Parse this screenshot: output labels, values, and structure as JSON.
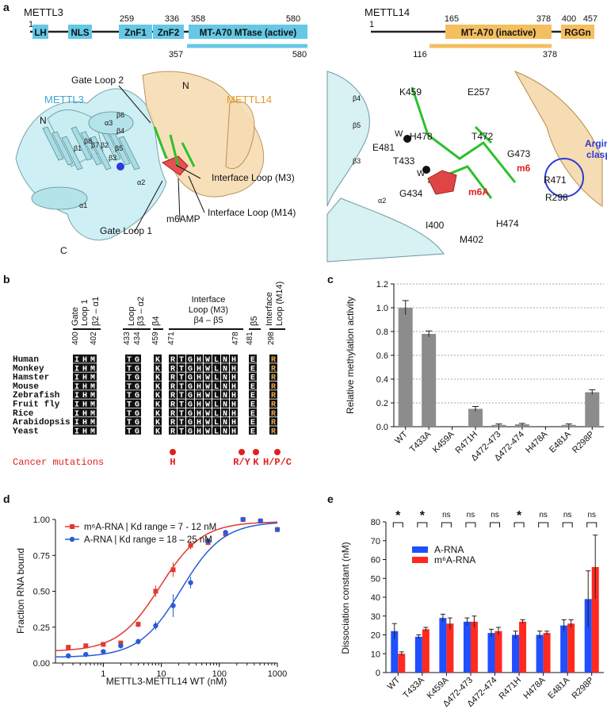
{
  "panel_labels": {
    "a": "a",
    "b": "b",
    "c": "c",
    "d": "d",
    "e": "e"
  },
  "domains_mettl3": {
    "name": "METTL3",
    "start": "1",
    "end": "580",
    "positions": [
      "259",
      "336",
      "358",
      "580"
    ],
    "blocks": [
      "LH",
      "NLS",
      "ZnF1",
      "ZnF2",
      "MT-A70 MTase (active)"
    ],
    "construct": {
      "start": "357",
      "end": "580"
    }
  },
  "domains_mettl14": {
    "name": "METTL14",
    "start": "1",
    "positions": [
      "165",
      "378",
      "400",
      "457"
    ],
    "blocks": [
      "MT-A70 (inactive)",
      "RGGn"
    ],
    "construct": {
      "start": "116",
      "end": "378"
    }
  },
  "structure_left": {
    "labels": [
      "Gate Loop 2",
      "METTL3",
      "METTL14",
      "N",
      "N",
      "C",
      "α3",
      "β6",
      "β4",
      "β5",
      "β3",
      "β1",
      "β8",
      "β7",
      "β2",
      "α2",
      "α1",
      "Interface Loop (M3)",
      "Interface Loop (M14)",
      "m6AMP",
      "Gate Loop 1"
    ]
  },
  "structure_right": {
    "labels": [
      "β4",
      "K459",
      "E257",
      "β5",
      "W",
      "H478",
      "T472",
      "E481",
      "G473",
      "m6",
      "β3",
      "T433",
      "W",
      "R471",
      "G434",
      "m6A",
      "R298",
      "H474",
      "α2",
      "I400",
      "M402",
      "Arginine",
      "clasp"
    ]
  },
  "alignment": {
    "header_regions": [
      "Gate\nLoop 1",
      "β2 – α1",
      "Loop\nβ3 – α2",
      "β4",
      "Interface\nLoop (M3)",
      "β4 – β5",
      "β5",
      "Interface\nLoop (M14)"
    ],
    "header_gate": "Gate",
    "header_loop1": "Loop 1",
    "header_b2a1": "β2 – α1",
    "header_loop": "Loop",
    "header_b3a2": "β3 – α2",
    "header_b4": "β4",
    "header_iface": "Interface",
    "header_iface2": "Loop (M3)",
    "header_b4b5": "β4 – β5",
    "header_b5": "β5",
    "header_m14a": "Interface",
    "header_m14b": "Loop (M14)",
    "positions": [
      "400",
      "402",
      "433",
      "434",
      "459",
      "471",
      "478",
      "481",
      "298"
    ],
    "species": [
      "Human",
      "Monkey",
      "Hamster",
      "Mouse",
      "Zebrafish",
      "Fruit fly",
      "Rice",
      "Arabidopsis",
      "Yeast"
    ],
    "residues": [
      "I",
      "H",
      "M",
      "T",
      "G",
      "K",
      "R",
      "T",
      "G",
      "H",
      "W",
      "L",
      "N",
      "H",
      "E",
      "R"
    ],
    "cancer_label": "Cancer mutations",
    "cancer_muts": [
      "H",
      "R/Y",
      "K",
      "H/P/C"
    ]
  },
  "chart_c": {
    "type": "bar",
    "ylabel": "Relative methylation activity",
    "ylim": [
      0,
      1.2
    ],
    "yticks": [
      "0.0",
      "0.2",
      "0.4",
      "0.6",
      "0.8",
      "1.0",
      "1.2"
    ],
    "categories": [
      "WT",
      "T433A",
      "K459A",
      "R471H",
      "Δ472-473",
      "Δ472-474",
      "H478A",
      "E481A",
      "R298P"
    ],
    "values": [
      1.0,
      0.78,
      0.0,
      0.15,
      0.015,
      0.02,
      0.0,
      0.015,
      0.29
    ],
    "errors": [
      0.06,
      0.025,
      0.0,
      0.02,
      0.008,
      0.008,
      0.0,
      0.008,
      0.02
    ],
    "color": "#8c8c8c"
  },
  "chart_d": {
    "type": "scatter",
    "xlabel": "METTL3-METTL14 WT (nM)",
    "ylabel": "Fraction RNA bound",
    "xscale": "log",
    "xlim": [
      0.15,
      1000
    ],
    "ylim": [
      0,
      1
    ],
    "yticks": [
      "0.00",
      "0.25",
      "0.50",
      "0.75",
      "1.00"
    ],
    "xticks": [
      "1",
      "10",
      "100",
      "1000"
    ],
    "series": [
      {
        "name": "m⁶A-RNA | Kd range = 7 - 12 nM",
        "color": "#e03a2f",
        "marker": "square",
        "x": [
          0.25,
          0.5,
          1,
          2,
          4,
          8,
          16,
          32,
          64,
          128,
          256,
          512,
          1000
        ],
        "y": [
          0.11,
          0.12,
          0.13,
          0.14,
          0.27,
          0.5,
          0.65,
          0.82,
          0.84,
          0.9,
          1.0,
          0.99,
          0.93
        ],
        "err": [
          0.01,
          0.01,
          0.01,
          0.01,
          0.02,
          0.04,
          0.05,
          0.03,
          0.02,
          0.01,
          0.01,
          0.01,
          0.01
        ],
        "fit": {
          "kd": 9.5,
          "bottom": 0.08,
          "top": 0.985,
          "n": 1.2
        }
      },
      {
        "name": "A-RNA | Kd range = 18 – 25 nM",
        "color": "#2a5bd7",
        "marker": "circle",
        "x": [
          0.25,
          0.5,
          1,
          2,
          4,
          8,
          16,
          32,
          64,
          128,
          256,
          512,
          1000
        ],
        "y": [
          0.05,
          0.06,
          0.08,
          0.12,
          0.15,
          0.26,
          0.4,
          0.56,
          0.85,
          0.91,
          1.0,
          0.99,
          0.93
        ],
        "err": [
          0.01,
          0.01,
          0.01,
          0.01,
          0.02,
          0.03,
          0.08,
          0.04,
          0.02,
          0.01,
          0.01,
          0.01,
          0.01
        ],
        "fit": {
          "kd": 22,
          "bottom": 0.04,
          "top": 0.985,
          "n": 1.2
        }
      }
    ]
  },
  "chart_e": {
    "type": "bar",
    "ylabel": "Dissociation constant (nM)",
    "ylim": [
      0,
      80
    ],
    "yticks": [
      "0",
      "10",
      "20",
      "30",
      "40",
      "50",
      "60",
      "70",
      "80"
    ],
    "categories": [
      "WT",
      "T433A",
      "K459A",
      "Δ472-473",
      "Δ472-474",
      "R471H",
      "H478A",
      "E481A",
      "R298P"
    ],
    "significance": [
      "*",
      "*",
      "ns",
      "ns",
      "ns",
      "*",
      "ns",
      "ns",
      "ns"
    ],
    "series": [
      {
        "name": "A-RNA",
        "color": "#1f4fff",
        "values": [
          22,
          19,
          29,
          27,
          21,
          20,
          20,
          25,
          39
        ],
        "errors": [
          4,
          1,
          2,
          2,
          2,
          2,
          2,
          3,
          15
        ]
      },
      {
        "name": "m⁶A-RNA",
        "color": "#ff2a1f",
        "values": [
          10,
          23,
          26,
          27,
          22,
          27,
          21,
          26,
          56
        ],
        "errors": [
          1,
          1,
          3,
          3,
          2,
          1,
          1,
          2,
          17
        ]
      }
    ]
  }
}
